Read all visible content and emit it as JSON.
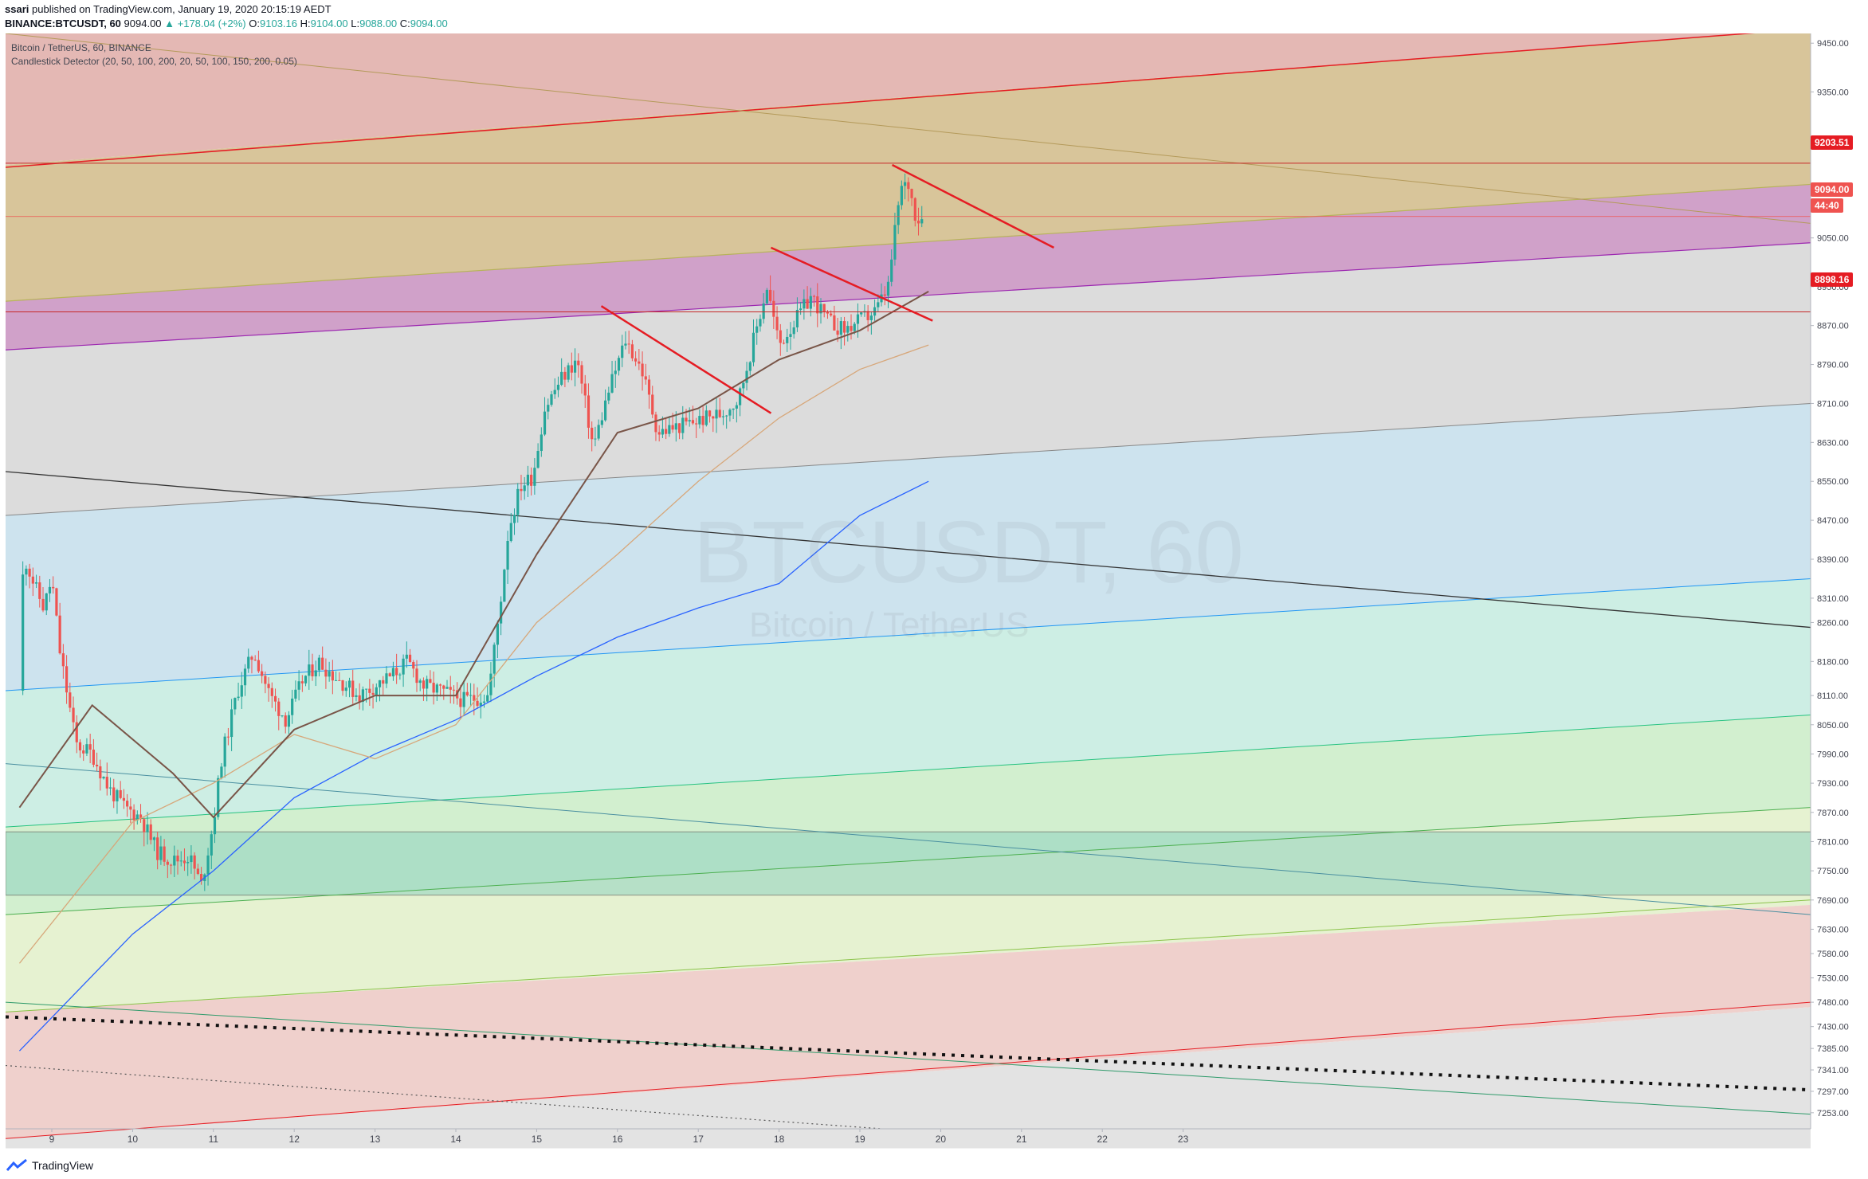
{
  "header": {
    "publisher": "ssari",
    "published_text": "published on TradingView.com, January 19, 2020 20:15:19 AEDT",
    "symbol_line": "BINANCE:BTCUSDT, 60",
    "last": "9094.00",
    "change": "▲ +178.04 (+2%)",
    "o_label": "O:",
    "o": "9103.16",
    "h_label": "H:",
    "h": "9104.00",
    "l_label": "L:",
    "l": "9088.00",
    "c_label": "C:",
    "c": "9094.00"
  },
  "legend": {
    "title": "Bitcoin / TetherUS, 60, BINANCE",
    "indicator": "Candlestick Detector (20, 50, 100, 200, 20, 50, 100, 150, 200, 0.05)"
  },
  "watermark": {
    "symbol": "BTCUSDT, 60",
    "name": "Bitcoin / TetherUS"
  },
  "footer": {
    "brand": "TradingView"
  },
  "price_tags": {
    "resistance": "9203.51",
    "last": "9094.00",
    "countdown": "44:40",
    "support": "8898.16"
  },
  "colors": {
    "up": "#26a69a",
    "down": "#ef5350",
    "trendline": "#e51c23",
    "ma200": "#2962ff",
    "ma100": "#d7a77a"
  },
  "chart_data": {
    "type": "candlestick",
    "symbol": "BTCUSDT",
    "interval": "60",
    "ylim": [
      7220,
      9470
    ],
    "x_ticks": [
      "9",
      "10",
      "11",
      "12",
      "13",
      "14",
      "15",
      "16",
      "17",
      "18",
      "19",
      "20",
      "21",
      "22",
      "23"
    ],
    "y_ticks": [
      "9450.00",
      "9350.00",
      "9250.00",
      "9150.00",
      "9050.00",
      "8950.00",
      "8870.00",
      "8790.00",
      "8710.00",
      "8630.00",
      "8550.00",
      "8470.00",
      "8390.00",
      "8310.00",
      "8260.00",
      "8180.00",
      "8110.00",
      "8050.00",
      "7990.00",
      "7930.00",
      "7870.00",
      "7810.00",
      "7750.00",
      "7690.00",
      "7630.00",
      "7580.00",
      "7530.00",
      "7480.00",
      "7430.00",
      "7385.00",
      "7341.00",
      "7297.00",
      "7253.00"
    ],
    "horizontal_levels": [
      9203.51,
      9094.0,
      8898.16
    ],
    "last_close": 9094.0,
    "price_path": [
      [
        "8.6",
        8120
      ],
      [
        "8.65",
        8400
      ],
      [
        "8.8",
        8330
      ],
      [
        "8.9",
        8290
      ],
      [
        "9.0",
        8350
      ],
      [
        "9.1",
        8200
      ],
      [
        "9.3",
        8010
      ],
      [
        "9.5",
        7990
      ],
      [
        "9.7",
        7920
      ],
      [
        "9.9",
        7880
      ],
      [
        "10.1",
        7860
      ],
      [
        "10.3",
        7790
      ],
      [
        "10.5",
        7770
      ],
      [
        "10.7",
        7780
      ],
      [
        "10.85",
        7720
      ],
      [
        "11.0",
        7850
      ],
      [
        "11.1",
        7980
      ],
      [
        "11.3",
        8120
      ],
      [
        "11.5",
        8200
      ],
      [
        "11.7",
        8110
      ],
      [
        "11.9",
        8060
      ],
      [
        "12.1",
        8140
      ],
      [
        "12.3",
        8180
      ],
      [
        "12.5",
        8150
      ],
      [
        "12.8",
        8110
      ],
      [
        "13.0",
        8130
      ],
      [
        "13.2",
        8150
      ],
      [
        "13.4",
        8180
      ],
      [
        "13.6",
        8130
      ],
      [
        "13.8",
        8120
      ],
      [
        "14.1",
        8100
      ],
      [
        "14.4",
        8110
      ],
      [
        "14.55",
        8300
      ],
      [
        "14.65",
        8450
      ],
      [
        "14.8",
        8540
      ],
      [
        "14.95",
        8560
      ],
      [
        "15.1",
        8700
      ],
      [
        "15.3",
        8760
      ],
      [
        "15.5",
        8800
      ],
      [
        "15.7",
        8620
      ],
      [
        "15.9",
        8740
      ],
      [
        "16.1",
        8840
      ],
      [
        "16.3",
        8780
      ],
      [
        "16.5",
        8650
      ],
      [
        "16.7",
        8660
      ],
      [
        "16.9",
        8670
      ],
      [
        "17.1",
        8680
      ],
      [
        "17.3",
        8690
      ],
      [
        "17.5",
        8720
      ],
      [
        "17.7",
        8850
      ],
      [
        "17.85",
        8950
      ],
      [
        "18.0",
        8830
      ],
      [
        "18.2",
        8880
      ],
      [
        "18.4",
        8930
      ],
      [
        "18.6",
        8880
      ],
      [
        "18.8",
        8860
      ],
      [
        "19.0",
        8880
      ],
      [
        "19.2",
        8900
      ],
      [
        "19.35",
        8950
      ],
      [
        "19.5",
        9150
      ],
      [
        "19.6",
        9160
      ],
      [
        "19.7",
        9090
      ],
      [
        "19.8",
        9094
      ]
    ],
    "moving_averages": {
      "ma200": [
        [
          "8.6",
          7380
        ],
        [
          "10",
          7620
        ],
        [
          "11",
          7750
        ],
        [
          "12",
          7900
        ],
        [
          "13",
          7990
        ],
        [
          "14",
          8060
        ],
        [
          "15",
          8150
        ],
        [
          "16",
          8230
        ],
        [
          "17",
          8290
        ],
        [
          "18",
          8340
        ],
        [
          "19",
          8480
        ],
        [
          "19.85",
          8550
        ]
      ],
      "ma100": [
        [
          "8.6",
          7560
        ],
        [
          "10",
          7850
        ],
        [
          "11",
          7930
        ],
        [
          "12",
          8030
        ],
        [
          "13",
          7980
        ],
        [
          "14",
          8050
        ],
        [
          "15",
          8260
        ],
        [
          "16",
          8400
        ],
        [
          "17",
          8550
        ],
        [
          "18",
          8680
        ],
        [
          "19",
          8780
        ],
        [
          "19.85",
          8830
        ]
      ],
      "ma50": [
        [
          "8.6",
          7880
        ],
        [
          "9.5",
          8090
        ],
        [
          "10.5",
          7950
        ],
        [
          "11",
          7860
        ],
        [
          "12",
          8040
        ],
        [
          "13",
          8110
        ],
        [
          "14",
          8110
        ],
        [
          "15",
          8400
        ],
        [
          "16",
          8650
        ],
        [
          "17",
          8700
        ],
        [
          "18",
          8800
        ],
        [
          "19",
          8860
        ],
        [
          "19.85",
          8940
        ]
      ]
    },
    "trendlines": [
      {
        "name": "triangle-1-top",
        "from": [
          "15.8",
          8910
        ],
        "to": [
          "17.9",
          8690
        ]
      },
      {
        "name": "triangle-2-top",
        "from": [
          "17.9",
          9030
        ],
        "to": [
          "19.9",
          8880
        ]
      },
      {
        "name": "triangle-3-top",
        "from": [
          "19.4",
          9200
        ],
        "to": [
          "21.4",
          9030
        ]
      }
    ],
    "channels": [
      {
        "color": "#d4a5a5",
        "from": [
          [
            "8.6",
            9480
          ],
          [
            "8.6",
            9200
          ]
        ],
        "to": [
          [
            "23.4",
            9480
          ],
          [
            "23.4",
            9480
          ]
        ]
      },
      {
        "color": "#c9b87a",
        "from": [
          [
            "8.6",
            8920
          ],
          [
            "8.6",
            9200
          ]
        ],
        "to": [
          [
            "23.4",
            9160
          ],
          [
            "23.4",
            9480
          ]
        ]
      },
      {
        "color": "#c28dc0",
        "from": [
          [
            "8.6",
            8820
          ],
          [
            "8.6",
            8920
          ]
        ],
        "to": [
          [
            "23.4",
            9040
          ],
          [
            "23.4",
            9160
          ]
        ]
      }
    ]
  }
}
